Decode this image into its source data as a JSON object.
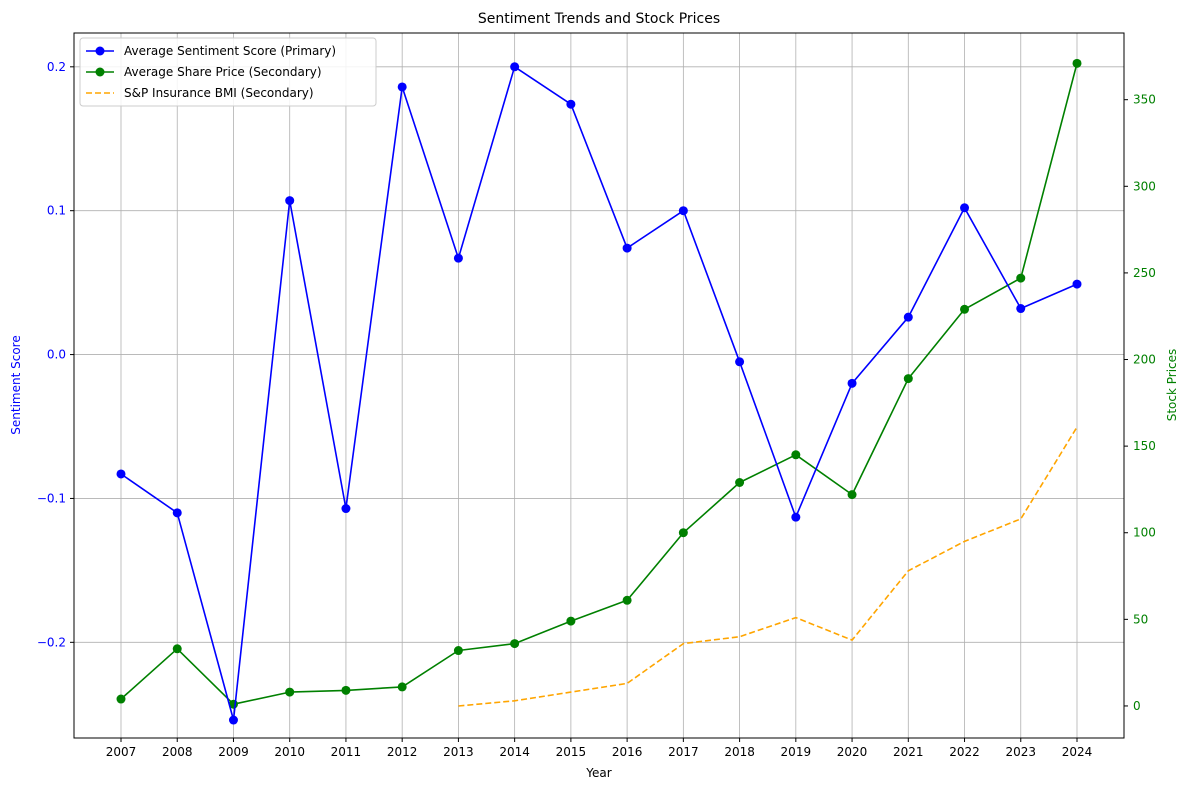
{
  "chart_data": {
    "type": "line",
    "title": "Sentiment Trends and Stock Prices",
    "xlabel": "Year",
    "ylabel_left": "Sentiment Score",
    "ylabel_right": "Stock Prices",
    "x": [
      "2007",
      "2008",
      "2009",
      "2010",
      "2011",
      "2012",
      "2013",
      "2014",
      "2015",
      "2016",
      "2017",
      "2018",
      "2019",
      "2020",
      "2021",
      "2022",
      "2023",
      "2024"
    ],
    "y_left_ticks": [
      "−0.2",
      "−0.1",
      "0.0",
      "0.1",
      "0.2"
    ],
    "y_left_tick_values": [
      -0.2,
      -0.1,
      0.0,
      0.1,
      0.2
    ],
    "y_left_lim": [
      -0.2665,
      0.2235
    ],
    "y_right_ticks": [
      "0",
      "50",
      "100",
      "150",
      "200",
      "250",
      "300",
      "350"
    ],
    "y_right_tick_values": [
      0,
      50,
      100,
      150,
      200,
      250,
      300,
      350
    ],
    "y_right_lim": [
      -18.5,
      388.5
    ],
    "grid": true,
    "legend_position": "top-left",
    "series": [
      {
        "name": "Average Sentiment Score (Primary)",
        "axis": "left",
        "color": "#0000ff",
        "style": "solid",
        "marker": "circle",
        "values": [
          -0.083,
          -0.11,
          -0.254,
          0.107,
          -0.107,
          0.186,
          0.067,
          0.2,
          0.174,
          0.074,
          0.1,
          -0.005,
          -0.113,
          -0.02,
          0.026,
          0.102,
          0.032,
          0.049
        ]
      },
      {
        "name": "Average Share Price (Secondary)",
        "axis": "right",
        "color": "#008000",
        "style": "solid",
        "marker": "circle",
        "values": [
          4,
          33,
          1,
          8,
          9,
          11,
          32,
          36,
          49,
          61,
          100,
          129,
          145,
          122,
          189,
          229,
          247,
          371
        ]
      },
      {
        "name": "S&P Insurance BMI (Secondary)",
        "axis": "right",
        "color": "#ffa500",
        "style": "dashed",
        "marker": "none",
        "values": [
          null,
          null,
          null,
          null,
          null,
          null,
          0,
          3,
          8,
          13,
          36,
          40,
          51,
          38,
          78,
          95,
          108,
          161
        ]
      }
    ]
  }
}
